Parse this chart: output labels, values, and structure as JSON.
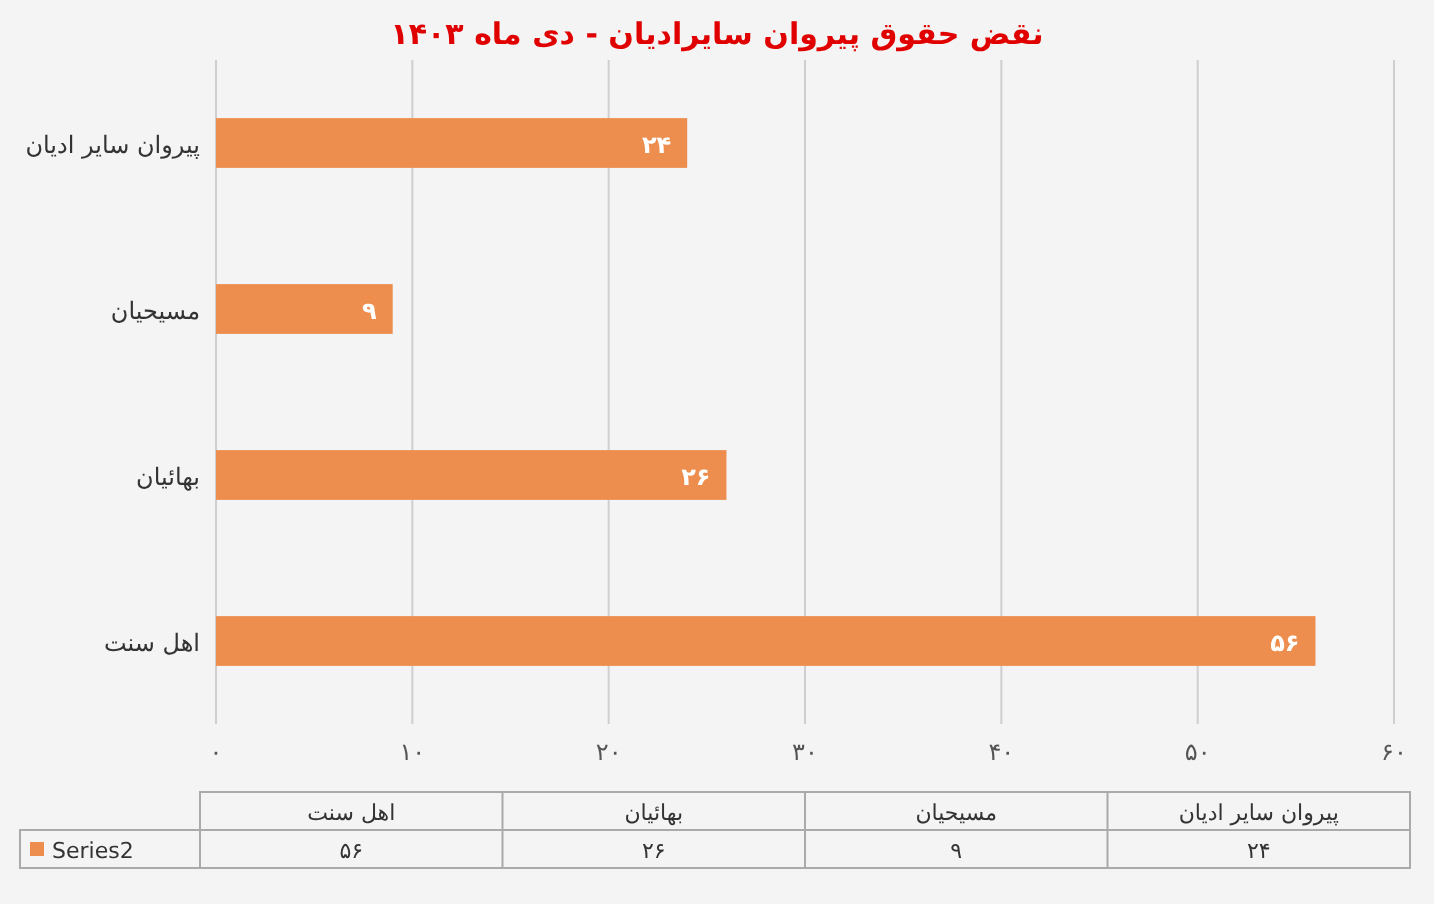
{
  "chart_data": {
    "type": "bar",
    "orientation": "horizontal",
    "title": "نقض حقوق پیروان سایرادیان - دی ماه ۱۴۰۳",
    "categories": [
      "پیروان سایر ادیان",
      "مسیحیان",
      "بهائیان",
      "اهل سنت"
    ],
    "series": [
      {
        "name": "Series2",
        "color": "#ed8e4f",
        "values": [
          24,
          9,
          26,
          56
        ],
        "value_labels": [
          "۲۴",
          "۹",
          "۲۶",
          "۵۶"
        ]
      }
    ],
    "xlim": [
      0,
      60
    ],
    "xticks": [
      {
        "value": 0,
        "label": "۰"
      },
      {
        "value": 10,
        "label": "۱۰"
      },
      {
        "value": 20,
        "label": "۲۰"
      },
      {
        "value": 30,
        "label": "۳۰"
      },
      {
        "value": 40,
        "label": "۴۰"
      },
      {
        "value": 50,
        "label": "۵۰"
      },
      {
        "value": 60,
        "label": "۶۰"
      }
    ],
    "grid": "x",
    "legend": "bottom"
  }
}
